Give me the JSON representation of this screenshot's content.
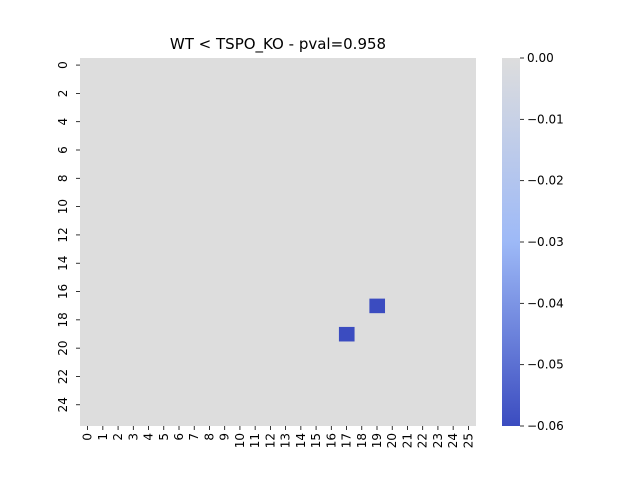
{
  "chart_data": {
    "type": "heatmap",
    "title": "WT < TSPO_KO - pval=0.958",
    "xlabel": "",
    "ylabel": "",
    "rows": 26,
    "cols": 26,
    "x_tick_labels": [
      "0",
      "1",
      "2",
      "3",
      "4",
      "5",
      "6",
      "7",
      "8",
      "9",
      "10",
      "11",
      "12",
      "13",
      "14",
      "15",
      "16",
      "17",
      "18",
      "19",
      "20",
      "21",
      "22",
      "23",
      "24",
      "25"
    ],
    "y_tick_labels": [
      "0",
      "2",
      "4",
      "6",
      "8",
      "10",
      "12",
      "14",
      "16",
      "18",
      "20",
      "22",
      "24"
    ],
    "background_value": 0.0,
    "cells": [
      {
        "row": 17,
        "col": 19,
        "value": -0.06
      },
      {
        "row": 19,
        "col": 17,
        "value": -0.06
      }
    ],
    "colorbar": {
      "vmin": -0.06,
      "vmax": 0.0,
      "ticks": [
        "0.00",
        "−0.01",
        "−0.02",
        "−0.03",
        "−0.04",
        "−0.05",
        "−0.06"
      ],
      "tick_values": [
        0.0,
        -0.01,
        -0.02,
        -0.03,
        -0.04,
        -0.05,
        -0.06
      ],
      "colors": [
        "#3b4cc0",
        "#dddddd"
      ]
    },
    "grid": false
  }
}
